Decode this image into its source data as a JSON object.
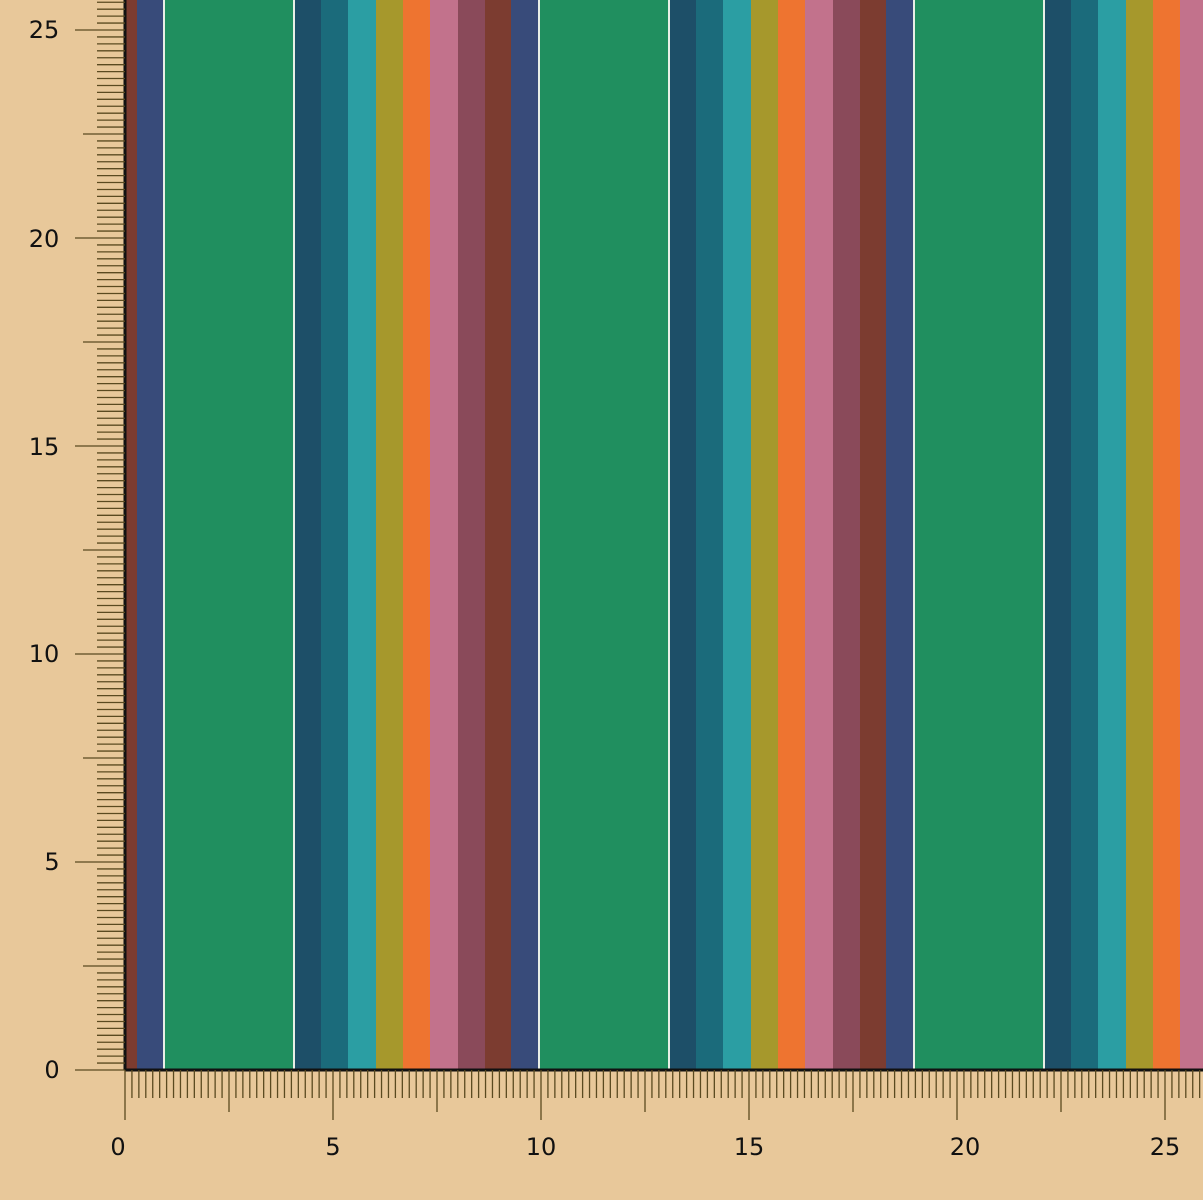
{
  "background_color": "#e8c89a",
  "ruler_color": "#5a4a20",
  "x_axis": {
    "tick_labels": [
      "0",
      "5",
      "10",
      "15",
      "20",
      "25"
    ]
  },
  "y_axis": {
    "tick_labels": [
      "0",
      "5",
      "10",
      "15",
      "20",
      "25"
    ]
  },
  "fabric": {
    "pattern": "vertical-stripes",
    "stripe_sequence": [
      {
        "name": "green",
        "color": "#208f5f"
      },
      {
        "name": "white-pinstripe",
        "color": "#e8efe6"
      },
      {
        "name": "dark-teal",
        "color": "#1d4f68"
      },
      {
        "name": "teal",
        "color": "#1b6b7b"
      },
      {
        "name": "turquoise",
        "color": "#2b9ea3"
      },
      {
        "name": "olive",
        "color": "#a6982c"
      },
      {
        "name": "orange",
        "color": "#ee7430"
      },
      {
        "name": "pink",
        "color": "#c2728c"
      },
      {
        "name": "mauve",
        "color": "#8a4a5a"
      },
      {
        "name": "rust",
        "color": "#7c3c30"
      },
      {
        "name": "navy",
        "color": "#384b7a"
      },
      {
        "name": "white-pinstripe",
        "color": "#e8efe6"
      }
    ]
  }
}
